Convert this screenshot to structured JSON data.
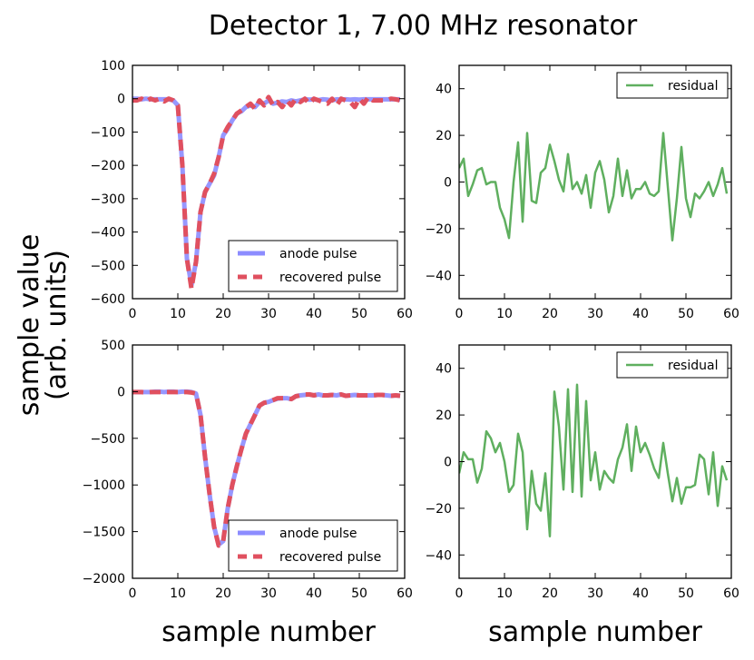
{
  "figure": {
    "title": "Detector 1, 7.00 MHz resonator",
    "ylabel_line1": "sample value",
    "ylabel_line2": "(arb. units)",
    "xlabel_left": "sample number",
    "xlabel_right": "sample number"
  },
  "chart_data": [
    {
      "id": "top-left",
      "type": "line",
      "xlim": [
        0,
        60
      ],
      "ylim": [
        -600,
        100
      ],
      "xticks": [
        0,
        10,
        20,
        30,
        40,
        50,
        60
      ],
      "yticks": [
        100,
        0,
        -100,
        -200,
        -300,
        -400,
        -500,
        -600
      ],
      "ytick_labels": [
        "100",
        "0",
        "−100",
        "−200",
        "−300",
        "−400",
        "−500",
        "−600"
      ],
      "legend": {
        "position": "lower-right",
        "entries": [
          "anode pulse",
          "recovered pulse"
        ]
      },
      "series": [
        {
          "name": "anode pulse",
          "color": "#8c8cff",
          "style": "solid",
          "x": [
            0,
            1,
            2,
            3,
            4,
            5,
            6,
            7,
            8,
            9,
            10,
            11,
            12,
            13,
            14,
            15,
            16,
            17,
            18,
            19,
            20,
            21,
            22,
            23,
            24,
            25,
            26,
            27,
            28,
            29,
            30,
            31,
            32,
            33,
            34,
            35,
            36,
            37,
            38,
            39,
            40,
            41,
            42,
            43,
            44,
            45,
            46,
            47,
            48,
            49,
            50,
            51,
            52,
            53,
            54,
            55,
            56,
            57,
            58,
            59
          ],
          "values": [
            0,
            0,
            -2,
            0,
            -2,
            -2,
            -2,
            -2,
            -2,
            -5,
            -20,
            -200,
            -480,
            -560,
            -490,
            -340,
            -280,
            -255,
            -230,
            -175,
            -110,
            -90,
            -65,
            -45,
            -38,
            -25,
            -20,
            -25,
            -10,
            -15,
            -5,
            -15,
            -12,
            -8,
            -10,
            -5,
            -8,
            -5,
            -2,
            -3,
            -2,
            -4,
            -2,
            -3,
            -5,
            -2,
            -3,
            -2,
            -3,
            -2,
            -3,
            -2,
            -2,
            -2,
            -2,
            -2,
            -2,
            -2,
            -2,
            -2
          ]
        },
        {
          "name": "recovered pulse",
          "color": "#e0505f",
          "style": "dashed",
          "x": [
            0,
            1,
            2,
            3,
            4,
            5,
            6,
            7,
            8,
            9,
            10,
            11,
            12,
            13,
            14,
            15,
            16,
            17,
            18,
            19,
            20,
            21,
            22,
            23,
            24,
            25,
            26,
            27,
            28,
            29,
            30,
            31,
            32,
            33,
            34,
            35,
            36,
            37,
            38,
            39,
            40,
            41,
            42,
            43,
            44,
            45,
            46,
            47,
            48,
            49,
            50,
            51,
            52,
            53,
            54,
            55,
            56,
            57,
            58,
            59
          ],
          "values": [
            -5,
            -5,
            0,
            -8,
            0,
            -5,
            0,
            -8,
            0,
            -5,
            -20,
            -200,
            -480,
            -570,
            -490,
            -340,
            -280,
            -255,
            -225,
            -175,
            -110,
            -85,
            -65,
            -45,
            -35,
            -25,
            -15,
            -30,
            -5,
            -20,
            5,
            -20,
            -10,
            -25,
            -5,
            -20,
            0,
            -10,
            0,
            -15,
            0,
            -5,
            -10,
            -15,
            0,
            -20,
            0,
            -5,
            -10,
            -25,
            0,
            -15,
            5,
            -5,
            -5,
            -5,
            -5,
            0,
            -2,
            -5
          ]
        }
      ]
    },
    {
      "id": "top-right",
      "type": "line",
      "xlim": [
        0,
        60
      ],
      "ylim": [
        -50,
        50
      ],
      "xticks": [
        0,
        10,
        20,
        30,
        40,
        50,
        60
      ],
      "yticks": [
        40,
        20,
        0,
        -20,
        -40
      ],
      "ytick_labels": [
        "40",
        "20",
        "0",
        "−20",
        "−40"
      ],
      "legend": {
        "position": "top-right",
        "entries": [
          "residual"
        ]
      },
      "series": [
        {
          "name": "residual",
          "color": "#5faf5f",
          "style": "solid",
          "x": [
            0,
            1,
            2,
            3,
            4,
            5,
            6,
            7,
            8,
            9,
            10,
            11,
            12,
            13,
            14,
            15,
            16,
            17,
            18,
            19,
            20,
            21,
            22,
            23,
            24,
            25,
            26,
            27,
            28,
            29,
            30,
            31,
            32,
            33,
            34,
            35,
            36,
            37,
            38,
            39,
            40,
            41,
            42,
            43,
            44,
            45,
            46,
            47,
            48,
            49,
            50,
            51,
            52,
            53,
            54,
            55,
            56,
            57,
            58,
            59
          ],
          "values": [
            6,
            10,
            -6,
            -1,
            5,
            6,
            -1,
            0,
            0,
            -11,
            -16,
            -24,
            0,
            17,
            -17,
            21,
            -8,
            -9,
            4,
            6,
            16,
            9,
            1,
            -4,
            12,
            -3,
            0,
            -5,
            3,
            -11,
            4,
            9,
            1,
            -13,
            -6,
            10,
            -6,
            5,
            -7,
            -3,
            -3,
            0,
            -5,
            -6,
            -4,
            21,
            -2,
            -25,
            -7,
            15,
            -7,
            -15,
            -5,
            -7,
            -4,
            0,
            -6,
            -1,
            6,
            -5
          ]
        }
      ]
    },
    {
      "id": "bottom-left",
      "type": "line",
      "xlim": [
        0,
        60
      ],
      "ylim": [
        -2000,
        500
      ],
      "xticks": [
        0,
        10,
        20,
        30,
        40,
        50,
        60
      ],
      "yticks": [
        500,
        0,
        -500,
        -1000,
        -1500,
        -2000
      ],
      "ytick_labels": [
        "500",
        "0",
        "−500",
        "−1000",
        "−1500",
        "−2000"
      ],
      "legend": {
        "position": "lower-right",
        "entries": [
          "anode pulse",
          "recovered pulse"
        ]
      },
      "series": [
        {
          "name": "anode pulse",
          "color": "#8c8cff",
          "style": "solid",
          "x": [
            0,
            1,
            2,
            3,
            4,
            5,
            6,
            7,
            8,
            9,
            10,
            11,
            12,
            13,
            14,
            15,
            16,
            17,
            18,
            19,
            20,
            21,
            22,
            23,
            24,
            25,
            26,
            27,
            28,
            29,
            30,
            31,
            32,
            33,
            34,
            35,
            36,
            37,
            38,
            39,
            40,
            41,
            42,
            43,
            44,
            45,
            46,
            47,
            48,
            49,
            50,
            51,
            52,
            53,
            54,
            55,
            56,
            57,
            58,
            59
          ],
          "values": [
            -5,
            -5,
            -5,
            -5,
            -5,
            0,
            0,
            -5,
            0,
            0,
            -5,
            0,
            0,
            -5,
            -20,
            -250,
            -700,
            -1100,
            -1450,
            -1640,
            -1600,
            -1250,
            -1000,
            -800,
            -620,
            -450,
            -350,
            -250,
            -150,
            -120,
            -110,
            -90,
            -75,
            -70,
            -70,
            -80,
            -50,
            -40,
            -35,
            -30,
            -40,
            -30,
            -40,
            -40,
            -35,
            -40,
            -30,
            -45,
            -40,
            -35,
            -40,
            -40,
            -40,
            -40,
            -35,
            -35,
            -40,
            -45,
            -40,
            -45
          ]
        },
        {
          "name": "recovered pulse",
          "color": "#e0505f",
          "style": "dashed",
          "x": [
            0,
            1,
            2,
            3,
            4,
            5,
            6,
            7,
            8,
            9,
            10,
            11,
            12,
            13,
            14,
            15,
            16,
            17,
            18,
            19,
            20,
            21,
            22,
            23,
            24,
            25,
            26,
            27,
            28,
            29,
            30,
            31,
            32,
            33,
            34,
            35,
            36,
            37,
            38,
            39,
            40,
            41,
            42,
            43,
            44,
            45,
            46,
            47,
            48,
            49,
            50,
            51,
            52,
            53,
            54,
            55,
            56,
            57,
            58,
            59
          ],
          "values": [
            -5,
            -5,
            -5,
            -10,
            -5,
            -5,
            -5,
            -5,
            -5,
            -5,
            -5,
            -5,
            -5,
            -10,
            -20,
            -250,
            -700,
            -1100,
            -1450,
            -1650,
            -1600,
            -1250,
            -1000,
            -800,
            -620,
            -450,
            -350,
            -250,
            -150,
            -120,
            -110,
            -90,
            -70,
            -70,
            -70,
            -80,
            -50,
            -40,
            -30,
            -30,
            -40,
            -30,
            -40,
            -40,
            -35,
            -40,
            -30,
            -45,
            -40,
            -35,
            -40,
            -40,
            -40,
            -40,
            -35,
            -35,
            -40,
            -45,
            -40,
            -45
          ]
        }
      ]
    },
    {
      "id": "bottom-right",
      "type": "line",
      "xlim": [
        0,
        60
      ],
      "ylim": [
        -50,
        50
      ],
      "xticks": [
        0,
        10,
        20,
        30,
        40,
        50,
        60
      ],
      "yticks": [
        40,
        20,
        0,
        -20,
        -40
      ],
      "ytick_labels": [
        "40",
        "20",
        "0",
        "−20",
        "−40"
      ],
      "legend": {
        "position": "top-right",
        "entries": [
          "residual"
        ]
      },
      "series": [
        {
          "name": "residual",
          "color": "#5faf5f",
          "style": "solid",
          "x": [
            0,
            1,
            2,
            3,
            4,
            5,
            6,
            7,
            8,
            9,
            10,
            11,
            12,
            13,
            14,
            15,
            16,
            17,
            18,
            19,
            20,
            21,
            22,
            23,
            24,
            25,
            26,
            27,
            28,
            29,
            30,
            31,
            32,
            33,
            34,
            35,
            36,
            37,
            38,
            39,
            40,
            41,
            42,
            43,
            44,
            45,
            46,
            47,
            48,
            49,
            50,
            51,
            52,
            53,
            54,
            55,
            56,
            57,
            58,
            59
          ],
          "values": [
            -5,
            4,
            1,
            1,
            -9,
            -3,
            13,
            10,
            4,
            8,
            0,
            -13,
            -10,
            12,
            4,
            -29,
            -4,
            -18,
            -21,
            -5,
            -32,
            30,
            15,
            -12,
            31,
            -13,
            33,
            -15,
            26,
            -8,
            4,
            -12,
            -4,
            -7,
            -9,
            1,
            6,
            16,
            -4,
            15,
            4,
            8,
            3,
            -3,
            -7,
            8,
            -5,
            -17,
            -7,
            -18,
            -11,
            -11,
            -10,
            3,
            1,
            -14,
            4,
            -19,
            -2,
            -8
          ]
        }
      ]
    }
  ]
}
